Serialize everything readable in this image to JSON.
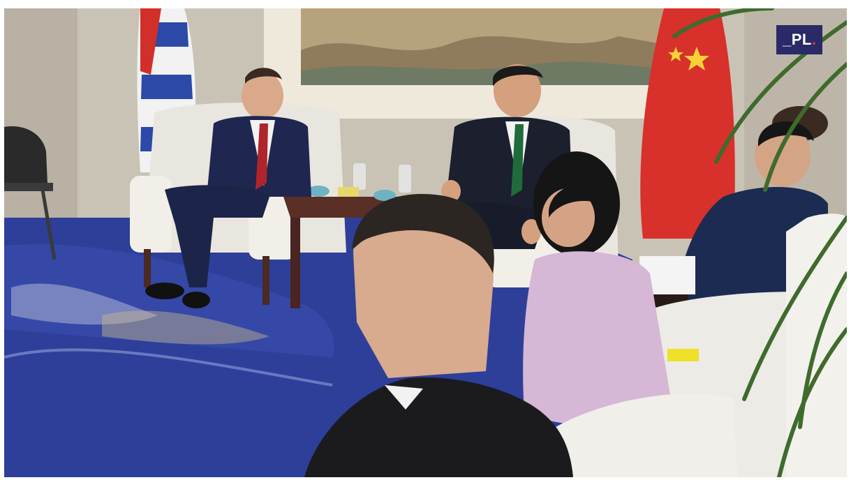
{
  "image": {
    "logo_text": "_PL",
    "logo_dot": ".",
    "colors": {
      "logo_background": "#2a2a68",
      "logo_dot": "#e23a3a",
      "carpet": "#2d3f99",
      "wall": "#c9c3b6",
      "china_flag": "#d8302a",
      "cuba_flag_blue": "#2c49a8"
    }
  }
}
